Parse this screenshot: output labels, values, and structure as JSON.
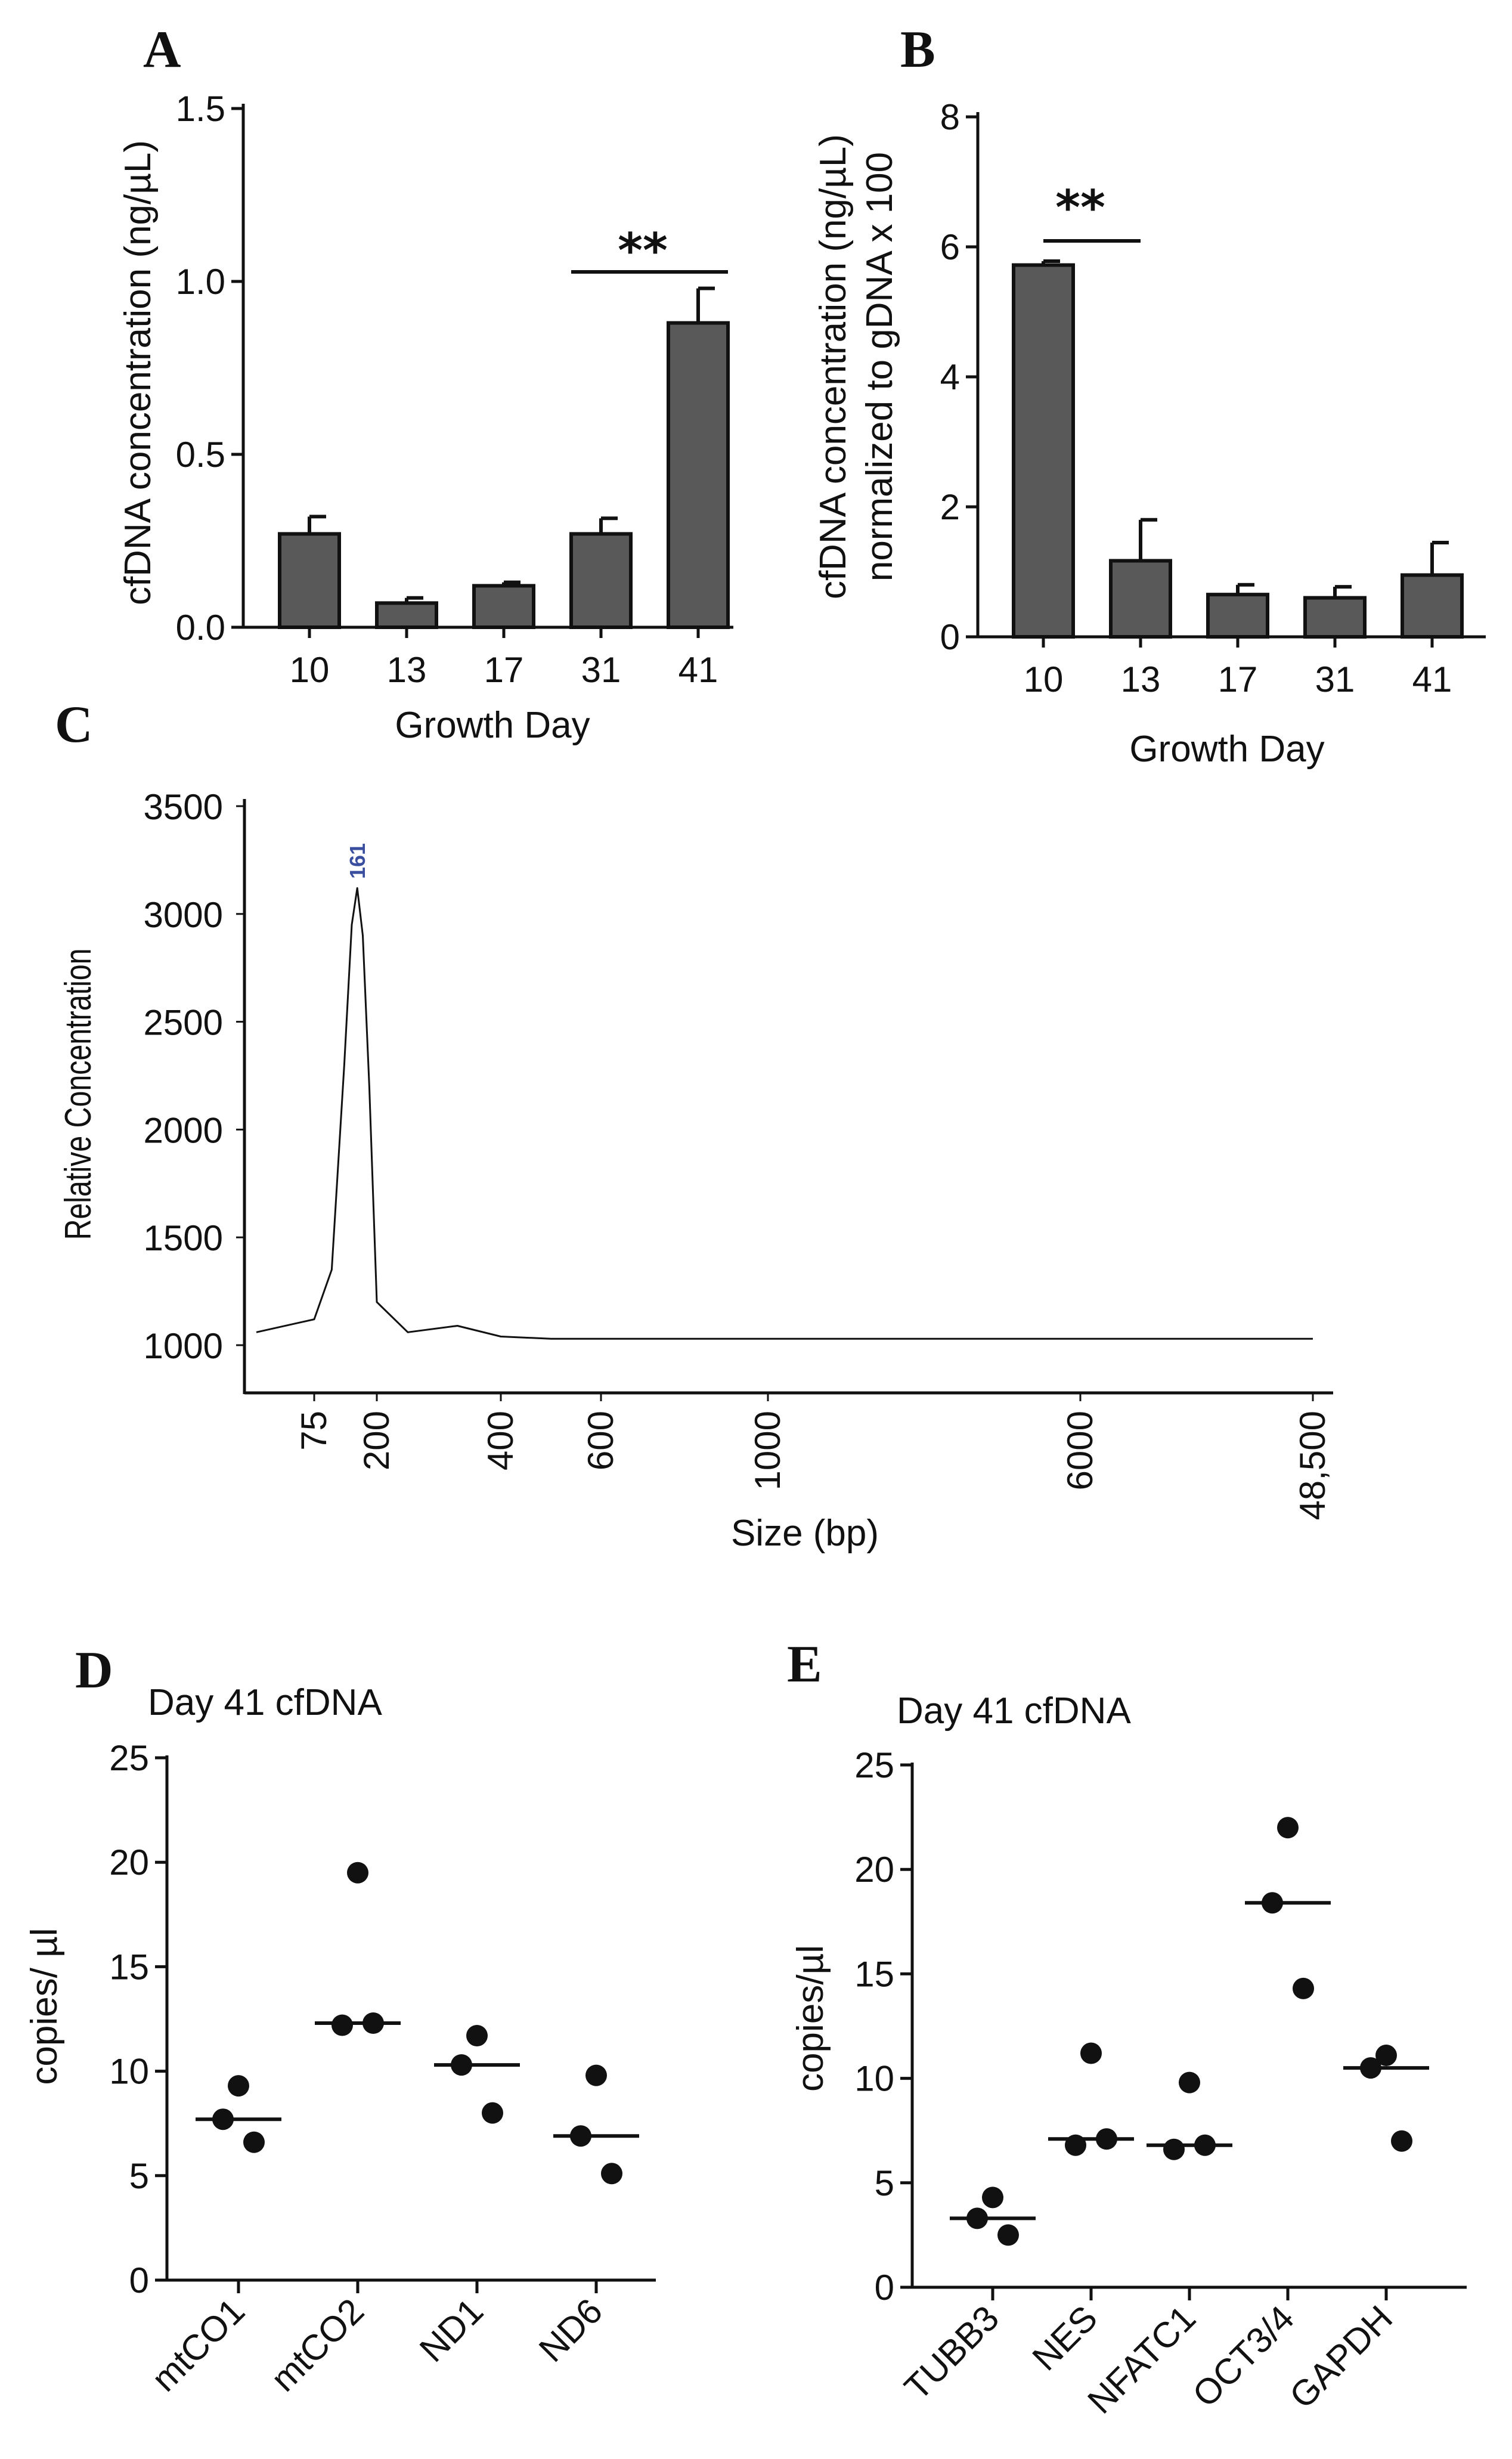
{
  "colors": {
    "bar": "#595959",
    "ink": "#111111",
    "peak_label": "#3a4ea0"
  },
  "chart_data": [
    {
      "panel": "A",
      "type": "bar",
      "title": "",
      "xlabel": "Growth Day",
      "ylabel": "cfDNA concentration (ng/µL)",
      "categories": [
        "10",
        "13",
        "17",
        "31",
        "41"
      ],
      "values": [
        0.27,
        0.07,
        0.12,
        0.27,
        0.88
      ],
      "errors": [
        0.05,
        0.015,
        0.01,
        0.045,
        0.1
      ],
      "ylim": [
        0,
        1.5
      ],
      "yticks": [
        "0.0",
        "0.5",
        "1.0",
        "1.5"
      ],
      "significance": {
        "label": "**",
        "from": "31",
        "to": "41"
      }
    },
    {
      "panel": "B",
      "type": "bar",
      "title": "",
      "xlabel": "Growth Day",
      "ylabel": "cfDNA concentration (ng/µL) normalized to gDNA x 100",
      "ylabel_lines": [
        "cfDNA concentration (ng/µL)",
        "normalized to gDNA x 100"
      ],
      "categories": [
        "10",
        "13",
        "17",
        "31",
        "41"
      ],
      "values": [
        5.72,
        1.17,
        0.65,
        0.6,
        0.95
      ],
      "errors": [
        0.06,
        0.63,
        0.15,
        0.17,
        0.5
      ],
      "ylim": [
        0,
        8
      ],
      "yticks": [
        "0",
        "2",
        "4",
        "6",
        "8"
      ],
      "significance": {
        "label": "**",
        "from": "10",
        "to": "13"
      }
    },
    {
      "panel": "C",
      "type": "line",
      "title": "",
      "xlabel": "Size (bp)",
      "ylabel": "Relative Concentration",
      "x_tick_labels": [
        "75",
        "200",
        "400",
        "600",
        "1000",
        "6000",
        "48,500"
      ],
      "yticks": [
        "1000",
        "1500",
        "2000",
        "2500",
        "3000",
        "3500"
      ],
      "ylim": [
        1000,
        3500
      ],
      "peak_label": "161",
      "series": [
        {
          "x": [
            35,
            75,
            110,
            135,
            150,
            161,
            172,
            185,
            200,
            250,
            330,
            400,
            500,
            1000,
            6000,
            48500
          ],
          "y": [
            1060,
            1120,
            1350,
            2300,
            2950,
            3120,
            2900,
            2200,
            1200,
            1060,
            1090,
            1040,
            1030,
            1030,
            1030,
            1030
          ]
        }
      ]
    },
    {
      "panel": "D",
      "type": "scatter",
      "title": "Day 41 cfDNA",
      "xlabel": "",
      "ylabel": "copies/ µl",
      "categories": [
        "mtCO1",
        "mtCO2",
        "ND1",
        "ND6"
      ],
      "points": [
        [
          9.3,
          7.7,
          6.6
        ],
        [
          19.5,
          12.2,
          12.3
        ],
        [
          11.7,
          10.3,
          8.0
        ],
        [
          9.8,
          6.9,
          5.1
        ]
      ],
      "medians": [
        7.7,
        12.3,
        10.3,
        6.9
      ],
      "ylim": [
        0,
        25
      ],
      "yticks": [
        "0",
        "5",
        "10",
        "15",
        "20",
        "25"
      ]
    },
    {
      "panel": "E",
      "type": "scatter",
      "title": "Day 41 cfDNA",
      "xlabel": "",
      "ylabel": "copies/µl",
      "categories": [
        "TUBB3",
        "NES",
        "NFATC1",
        "OCT3/4",
        "GAPDH"
      ],
      "points": [
        [
          4.3,
          3.3,
          2.5
        ],
        [
          11.2,
          6.8,
          7.1
        ],
        [
          9.8,
          6.6,
          6.8
        ],
        [
          22.0,
          18.4,
          14.3
        ],
        [
          11.1,
          10.5,
          7.0
        ]
      ],
      "medians": [
        3.3,
        7.1,
        6.8,
        18.4,
        10.5
      ],
      "ylim": [
        0,
        25
      ],
      "yticks": [
        "0",
        "5",
        "10",
        "15",
        "20",
        "25"
      ]
    }
  ]
}
